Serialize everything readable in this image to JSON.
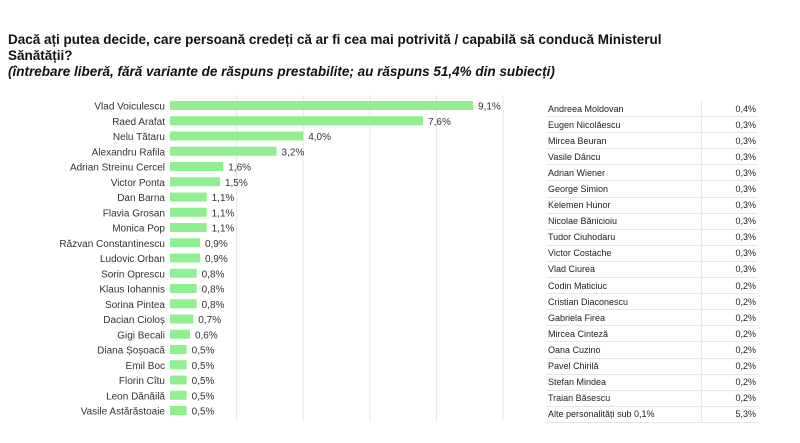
{
  "title": "Dacă ați putea decide, care persoană credeți că ar fi cea mai potrivită / capabilă să conducă Ministerul Sănătății?",
  "subtitle": "(întrebare liberă, fără variante de răspuns prestabilite; au răspuns 51,4% din subiecți)",
  "chart_data": {
    "type": "bar",
    "orientation": "horizontal",
    "categories": [
      "Vlad Voiculescu",
      "Raed Arafat",
      "Nelu Tătaru",
      "Alexandru Rafila",
      "Adrian Streinu Cercel",
      "Victor Ponta",
      "Dan Barna",
      "Flavia Grosan",
      "Monica Pop",
      "Răzvan Constantinescu",
      "Ludovic Orban",
      "Sorin Oprescu",
      "Klaus Iohannis",
      "Sorina Pintea",
      "Dacian Cioloș",
      "Gigi Becali",
      "Diana Șoșoacă",
      "Emil Boc",
      "Florin Cîtu",
      "Leon Dănăilă",
      "Vasile Astărăstoaie"
    ],
    "values": [
      9.1,
      7.6,
      4.0,
      3.2,
      1.6,
      1.5,
      1.1,
      1.1,
      1.1,
      0.9,
      0.9,
      0.8,
      0.8,
      0.8,
      0.7,
      0.6,
      0.5,
      0.5,
      0.5,
      0.5,
      0.5
    ],
    "labels": [
      "9,1%",
      "7,6%",
      "4,0%",
      "3,2%",
      "1,6%",
      "1,5%",
      "1,1%",
      "1,1%",
      "1,1%",
      "0,9%",
      "0,9%",
      "0,8%",
      "0,8%",
      "0,8%",
      "0,7%",
      "0,6%",
      "0,5%",
      "0,5%",
      "0,5%",
      "0,5%",
      "0,5%"
    ],
    "xlim": [
      0,
      10
    ],
    "grid": true,
    "bar_color": "#90f090",
    "grid_color": "#e6e6e6"
  },
  "table": [
    {
      "name": "Andreea Moldovan",
      "value": "0,4%"
    },
    {
      "name": "Eugen Nicolăescu",
      "value": "0,3%"
    },
    {
      "name": "Mircea Beuran",
      "value": "0,3%"
    },
    {
      "name": "Vasile Dâncu",
      "value": "0,3%"
    },
    {
      "name": "Adrian Wiener",
      "value": "0,3%"
    },
    {
      "name": "George Simion",
      "value": "0,3%"
    },
    {
      "name": "Kelemen Hunor",
      "value": "0,3%"
    },
    {
      "name": "Nicolae Bănicioiu",
      "value": "0,3%"
    },
    {
      "name": "Tudor Ciuhodaru",
      "value": "0,3%"
    },
    {
      "name": "Victor Costache",
      "value": "0,3%"
    },
    {
      "name": "Vlad Ciurea",
      "value": "0,3%"
    },
    {
      "name": "Codin Maticiuc",
      "value": "0,2%"
    },
    {
      "name": "Cristian Diaconescu",
      "value": "0,2%"
    },
    {
      "name": "Gabriela Firea",
      "value": "0,2%"
    },
    {
      "name": "Mircea Cinteză",
      "value": "0,2%"
    },
    {
      "name": "Oana Cuzino",
      "value": "0,2%"
    },
    {
      "name": "Pavel Chirilă",
      "value": "0,2%"
    },
    {
      "name": "Stefan Mindea",
      "value": "0,2%"
    },
    {
      "name": "Traian Băsescu",
      "value": "0,2%"
    },
    {
      "name": "Alte personalități sub 0,1%",
      "value": "5,3%"
    }
  ]
}
